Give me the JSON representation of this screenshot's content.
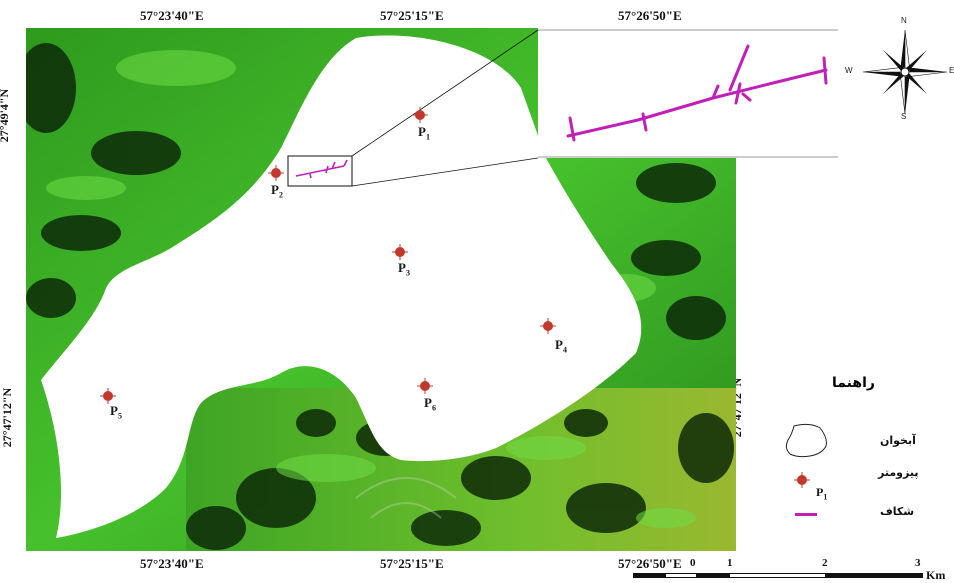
{
  "coordinates": {
    "top": [
      "57°23'40\"E",
      "57°25'15\"E",
      "57°26'50\"E"
    ],
    "bottom": [
      "57°23'40\"E",
      "57°25'15\"E",
      "57°26'50\"E"
    ],
    "left": [
      "27°49'4\"N",
      "27°47'12\"N"
    ],
    "right": [
      "27°47'12\"N"
    ]
  },
  "piezometers": [
    {
      "label": "P",
      "sub": "1"
    },
    {
      "label": "P",
      "sub": "2"
    },
    {
      "label": "P",
      "sub": "3"
    },
    {
      "label": "P",
      "sub": "4"
    },
    {
      "label": "P",
      "sub": "5"
    },
    {
      "label": "P",
      "sub": "6"
    }
  ],
  "compass": {
    "n": "N",
    "s": "S",
    "e": "E",
    "w": "W"
  },
  "legend": {
    "title": "راهنما",
    "aquifer": "آبخوان",
    "piezometer": "پیزومتر",
    "piezometer_sample": "P",
    "piezometer_sample_sub": "1",
    "fracture": "شکاف"
  },
  "scale": {
    "ticks": [
      "0",
      "1",
      "2",
      "3"
    ],
    "unit": "Km"
  },
  "colors": {
    "fracture": "#c21fb8",
    "piezometer": "#c0392b"
  }
}
